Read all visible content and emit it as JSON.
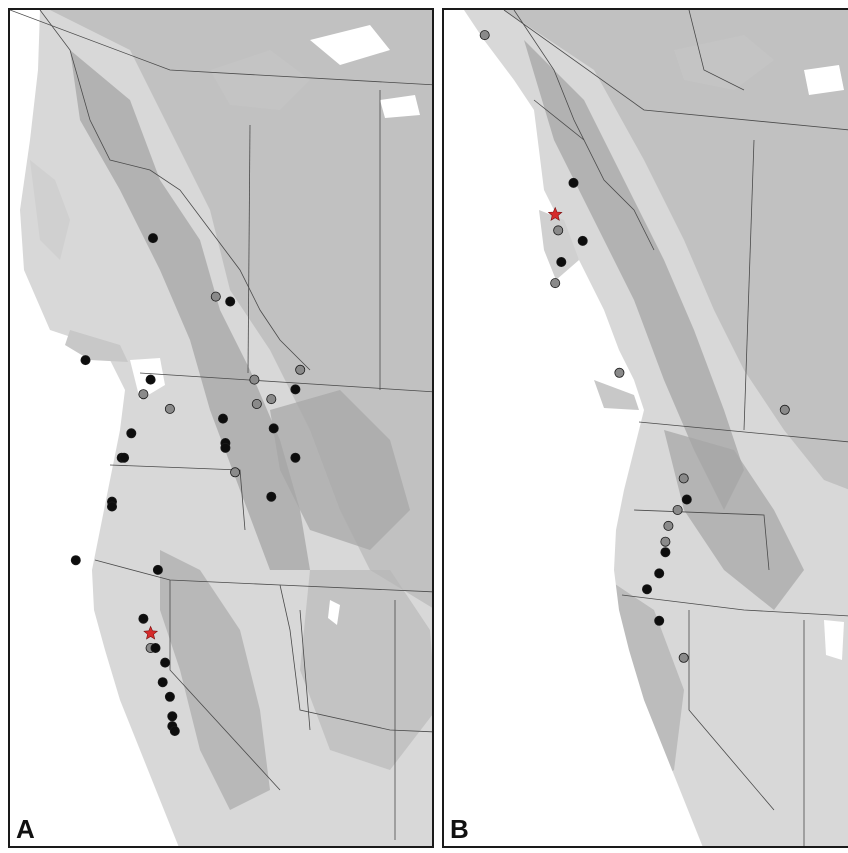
{
  "figure": {
    "panels": [
      {
        "id": "A",
        "label": "A",
        "occurrences": [
          {
            "status": "black",
            "lon": -120.9,
            "lat": 50.4
          },
          {
            "status": "grey",
            "lon": -118.3,
            "lat": 49.2
          },
          {
            "status": "black",
            "lon": -117.7,
            "lat": 49.1
          },
          {
            "status": "black",
            "lon": -123.7,
            "lat": 47.9
          },
          {
            "status": "black",
            "lon": -121.0,
            "lat": 47.5
          },
          {
            "status": "grey",
            "lon": -121.3,
            "lat": 47.2
          },
          {
            "status": "grey",
            "lon": -120.2,
            "lat": 46.9
          },
          {
            "status": "grey",
            "lon": -116.7,
            "lat": 47.5
          },
          {
            "status": "grey",
            "lon": -114.8,
            "lat": 47.7
          },
          {
            "status": "black",
            "lon": -115.0,
            "lat": 47.3
          },
          {
            "status": "grey",
            "lon": -116.6,
            "lat": 47.0
          },
          {
            "status": "grey",
            "lon": -116.0,
            "lat": 47.1
          },
          {
            "status": "black",
            "lon": -115.9,
            "lat": 46.5
          },
          {
            "status": "black",
            "lon": -118.0,
            "lat": 46.7
          },
          {
            "status": "black",
            "lon": -121.8,
            "lat": 46.4
          },
          {
            "status": "black",
            "lon": -117.9,
            "lat": 46.2
          },
          {
            "status": "black",
            "lon": -117.9,
            "lat": 46.1
          },
          {
            "status": "black",
            "lon": -115.0,
            "lat": 45.9
          },
          {
            "status": "grey",
            "lon": -117.5,
            "lat": 45.6
          },
          {
            "status": "black",
            "lon": -122.2,
            "lat": 45.9
          },
          {
            "status": "black",
            "lon": -122.1,
            "lat": 45.9
          },
          {
            "status": "black",
            "lon": -116.0,
            "lat": 45.1
          },
          {
            "status": "black",
            "lon": -122.6,
            "lat": 45.0
          },
          {
            "status": "black",
            "lon": -122.6,
            "lat": 44.9
          },
          {
            "status": "black",
            "lon": -124.1,
            "lat": 43.8
          },
          {
            "status": "black",
            "lon": -120.7,
            "lat": 43.6
          },
          {
            "status": "black",
            "lon": -121.3,
            "lat": 42.6
          },
          {
            "status": "star",
            "lon": -121.0,
            "lat": 42.3
          },
          {
            "status": "grey",
            "lon": -121.0,
            "lat": 42.0
          },
          {
            "status": "black",
            "lon": -120.8,
            "lat": 42.0
          },
          {
            "status": "black",
            "lon": -120.4,
            "lat": 41.7
          },
          {
            "status": "black",
            "lon": -120.5,
            "lat": 41.3
          },
          {
            "status": "black",
            "lon": -120.2,
            "lat": 41.0
          },
          {
            "status": "black",
            "lon": -120.1,
            "lat": 40.6
          },
          {
            "status": "black",
            "lon": -120.1,
            "lat": 40.4
          },
          {
            "status": "black",
            "lon": -120.0,
            "lat": 40.3
          }
        ]
      },
      {
        "id": "B",
        "label": "B",
        "occurrences": [
          {
            "status": "grey",
            "lon": -132.8,
            "lat": 59.6
          },
          {
            "status": "black",
            "lon": -129.9,
            "lat": 56.8
          },
          {
            "status": "star",
            "lon": -130.5,
            "lat": 56.2
          },
          {
            "status": "grey",
            "lon": -130.4,
            "lat": 55.9
          },
          {
            "status": "black",
            "lon": -129.6,
            "lat": 55.7
          },
          {
            "status": "black",
            "lon": -130.3,
            "lat": 55.3
          },
          {
            "status": "grey",
            "lon": -130.5,
            "lat": 54.9
          },
          {
            "status": "grey",
            "lon": -128.4,
            "lat": 53.2
          },
          {
            "status": "grey",
            "lon": -123.0,
            "lat": 52.5
          },
          {
            "status": "grey",
            "lon": -126.3,
            "lat": 51.2
          },
          {
            "status": "black",
            "lon": -126.2,
            "lat": 50.8
          },
          {
            "status": "grey",
            "lon": -126.5,
            "lat": 50.6
          },
          {
            "status": "grey",
            "lon": -126.8,
            "lat": 50.3
          },
          {
            "status": "grey",
            "lon": -126.9,
            "lat": 50.0
          },
          {
            "status": "black",
            "lon": -126.9,
            "lat": 49.8
          },
          {
            "status": "black",
            "lon": -127.1,
            "lat": 49.4
          },
          {
            "status": "black",
            "lon": -127.5,
            "lat": 49.1
          },
          {
            "status": "black",
            "lon": -127.1,
            "lat": 48.5
          },
          {
            "status": "grey",
            "lon": -126.3,
            "lat": 47.8
          }
        ]
      }
    ],
    "colors": {
      "black_dot": "#0d0d0d",
      "grey_dot": "#8a8a8a",
      "star": "#d62b2b",
      "water": "#ffffff",
      "land_low": "#d4d4d4",
      "land_mid": "#bcbcbc",
      "land_high": "#a6a6a6",
      "border": "#1a1a1a"
    }
  }
}
